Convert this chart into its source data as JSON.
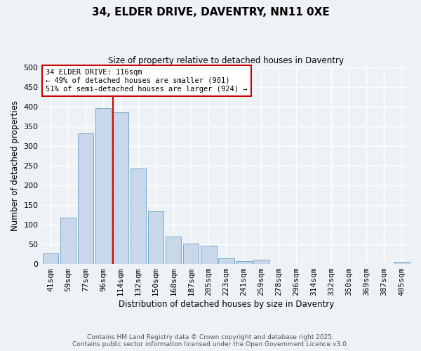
{
  "title": "34, ELDER DRIVE, DAVENTRY, NN11 0XE",
  "subtitle": "Size of property relative to detached houses in Daventry",
  "xlabel": "Distribution of detached houses by size in Daventry",
  "ylabel": "Number of detached properties",
  "bar_labels": [
    "41sqm",
    "59sqm",
    "77sqm",
    "96sqm",
    "114sqm",
    "132sqm",
    "150sqm",
    "168sqm",
    "187sqm",
    "205sqm",
    "223sqm",
    "241sqm",
    "259sqm",
    "278sqm",
    "296sqm",
    "314sqm",
    "332sqm",
    "350sqm",
    "369sqm",
    "387sqm",
    "405sqm"
  ],
  "bar_values": [
    27,
    117,
    332,
    396,
    386,
    243,
    133,
    69,
    51,
    46,
    14,
    7,
    11,
    0,
    0,
    0,
    0,
    0,
    0,
    0,
    5
  ],
  "bar_color": "#c8d8ea",
  "bar_edge_color": "#7aaac8",
  "vline_index": 4,
  "vline_color": "#cc0000",
  "ylim": [
    0,
    500
  ],
  "yticks": [
    0,
    50,
    100,
    150,
    200,
    250,
    300,
    350,
    400,
    450,
    500
  ],
  "annotation_title": "34 ELDER DRIVE: 116sqm",
  "annotation_line1": "← 49% of detached houses are smaller (901)",
  "annotation_line2": "51% of semi-detached houses are larger (924) →",
  "annotation_box_facecolor": "#ffffff",
  "annotation_box_edgecolor": "#cc0000",
  "footer_line1": "Contains HM Land Registry data © Crown copyright and database right 2025.",
  "footer_line2": "Contains public sector information licensed under the Open Government Licence v3.0.",
  "bg_color": "#eef2f7",
  "grid_color": "#ffffff"
}
